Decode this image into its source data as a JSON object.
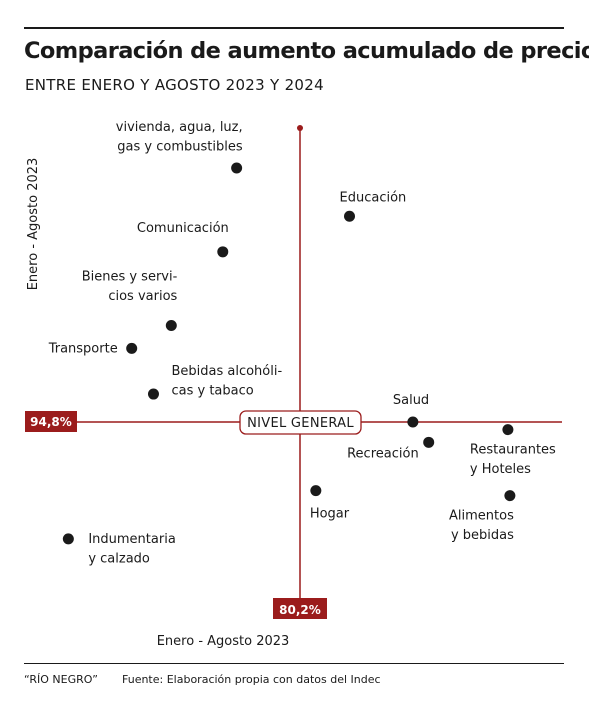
{
  "header": {
    "title": "Comparación de aumento acumulado de precio",
    "subtitle": "ENTRE ENERO Y AGOSTO 2023 Y 2024"
  },
  "footer": {
    "brand": "“RÍO NEGRO”",
    "source": "Fuente: Elaboración propia con datos del Indec"
  },
  "colors": {
    "accent": "#9b1c1c",
    "point": "#1a1a1a",
    "text": "#1a1a1a"
  },
  "chart_data": {
    "type": "scatter",
    "xlabel": "Enero - Agosto 2023",
    "ylabel": "Enero - Agosto 2023",
    "reference": {
      "label": "NIVEL GENERAL",
      "x_label": "80,2%",
      "y_label": "94,8%"
    },
    "points": [
      {
        "name": "vivienda, agua, luz, gas y combustibles",
        "lines": [
          "vivienda, agua, luz,",
          "gas y combustibles"
        ],
        "x": -0.32,
        "y": 1.0
      },
      {
        "name": "Educación",
        "lines": [
          "Educación"
        ],
        "x": 0.25,
        "y": 0.81
      },
      {
        "name": "Comunicación",
        "lines": [
          "Comunicación"
        ],
        "x": -0.39,
        "y": 0.67
      },
      {
        "name": "Bienes y servicios varios",
        "lines": [
          "Bienes y servi-",
          "cios varios"
        ],
        "x": -0.65,
        "y": 0.38
      },
      {
        "name": "Transporte",
        "lines": [
          "Transporte"
        ],
        "x": -0.85,
        "y": 0.29
      },
      {
        "name": "Bebidas alcohólicas y tabaco",
        "lines": [
          "Bebidas alcohóli-",
          "cas y tabaco"
        ],
        "x": -0.74,
        "y": 0.11
      },
      {
        "name": "Salud",
        "lines": [
          "Salud"
        ],
        "x": 0.57,
        "y": 0.0
      },
      {
        "name": "Restaurantes y Hoteles",
        "lines": [
          "Restaurantes",
          "y Hoteles"
        ],
        "x": 1.05,
        "y": -0.03
      },
      {
        "name": "Recreación",
        "lines": [
          "Recreación"
        ],
        "x": 0.65,
        "y": -0.08
      },
      {
        "name": "Hogar",
        "lines": [
          "Hogar"
        ],
        "x": 0.08,
        "y": -0.27
      },
      {
        "name": "Alimentos y bebidas",
        "lines": [
          "Alimentos",
          "y bebidas"
        ],
        "x": 1.06,
        "y": -0.29
      },
      {
        "name": "Indumentaria y calzado",
        "lines": [
          "Indumentaria",
          "y calzado"
        ],
        "x": -1.17,
        "y": -0.46
      }
    ]
  }
}
